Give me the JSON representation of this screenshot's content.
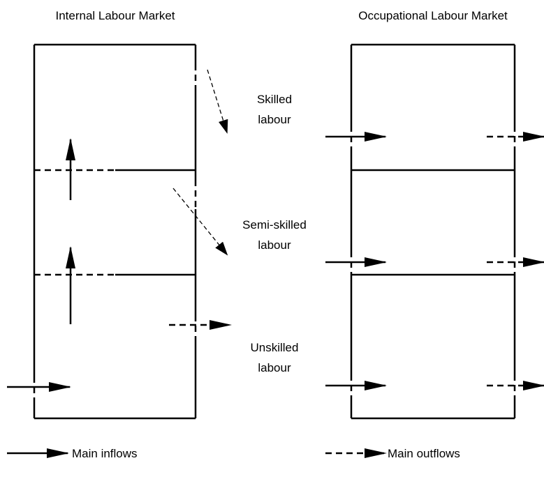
{
  "titles": {
    "left": "Internal Labour Market",
    "right": "Occupational Labour Market"
  },
  "levels": [
    {
      "line1": "Skilled",
      "line2": "labour"
    },
    {
      "line1": "Semi-skilled",
      "line2": "labour"
    },
    {
      "line1": "Unskilled",
      "line2": "labour"
    }
  ],
  "legend": {
    "inflows": "Main inflows",
    "outflows": "Main outflows"
  }
}
